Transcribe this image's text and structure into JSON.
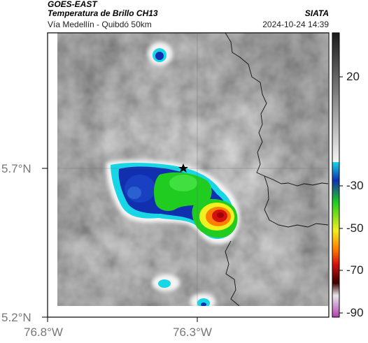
{
  "header": {
    "satellite": "GOES-EAST",
    "product": "Temperatura de Brillo CH13",
    "route": "Vía Medellín - Quibdó 50km",
    "agency": "SIATA",
    "datetime": "2024-10-24 14:39"
  },
  "axes": {
    "lat_ticks": [
      "5.7°N",
      "5.2°N"
    ],
    "lon_ticks": [
      "76.8°W",
      "76.3°W"
    ]
  },
  "colorbar": {
    "ticks": [
      "20",
      "-30",
      "-50",
      "-70",
      "-90"
    ],
    "colors": {
      "grey_top": "#1a1a1a",
      "grey_bottom": "#f4f4f4",
      "cyan": "#19d6e6",
      "blue": "#1030b0",
      "green": "#20cc20",
      "yellow": "#f0f020",
      "orange": "#ff8000",
      "red": "#d41010",
      "dark_red": "#3a0000",
      "magenta": "#b040b0"
    }
  }
}
